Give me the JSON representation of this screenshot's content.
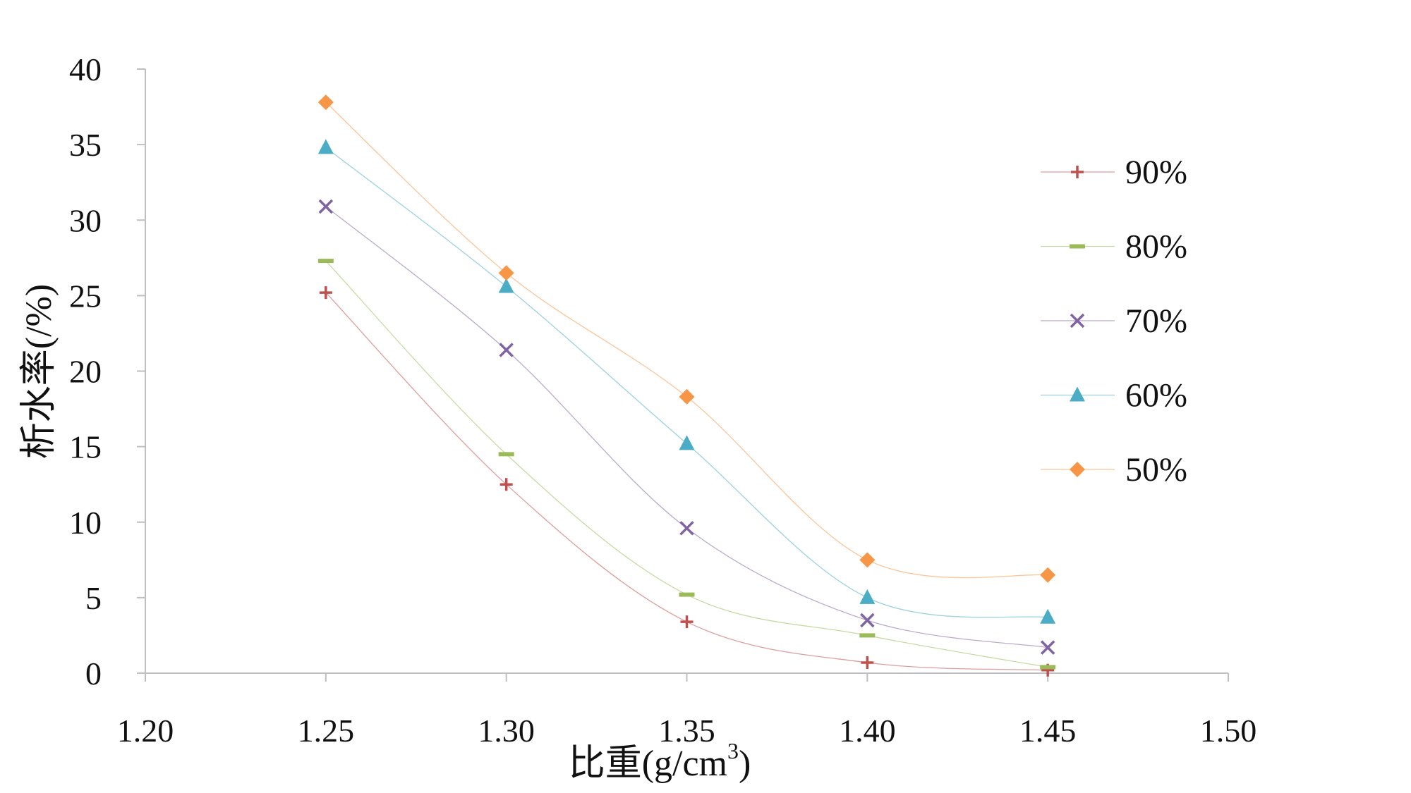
{
  "chart_data": {
    "type": "line",
    "xlabel": "比重(g/cm",
    "xlabel_sup": "3",
    "xlabel_close": ")",
    "ylabel": "析水率(/%)",
    "xlim": [
      1.2,
      1.5
    ],
    "ylim": [
      0,
      40
    ],
    "x_ticks": [
      "1.20",
      "1.25",
      "1.30",
      "1.35",
      "1.40",
      "1.45",
      "1.50"
    ],
    "y_ticks": [
      "0",
      "5",
      "10",
      "15",
      "20",
      "25",
      "30",
      "35",
      "40"
    ],
    "x": [
      1.25,
      1.3,
      1.35,
      1.4,
      1.45
    ],
    "grid": false,
    "smooth": true,
    "legend_position": "right",
    "series": [
      {
        "name": "90%",
        "marker": "plus",
        "color": "#c0504d",
        "values": [
          25.2,
          12.5,
          3.4,
          0.7,
          0.2
        ]
      },
      {
        "name": "80%",
        "marker": "dash",
        "color": "#9bbb59",
        "values": [
          27.3,
          14.5,
          5.2,
          2.5,
          0.4
        ]
      },
      {
        "name": "70%",
        "marker": "cross",
        "color": "#8064a2",
        "values": [
          30.9,
          21.4,
          9.6,
          3.5,
          1.7
        ]
      },
      {
        "name": "60%",
        "marker": "triangle",
        "color": "#4bacc6",
        "values": [
          34.8,
          25.6,
          15.2,
          5.0,
          3.7
        ]
      },
      {
        "name": "50%",
        "marker": "diamond",
        "color": "#f79646",
        "values": [
          37.8,
          26.5,
          18.3,
          7.5,
          6.5
        ]
      }
    ]
  }
}
